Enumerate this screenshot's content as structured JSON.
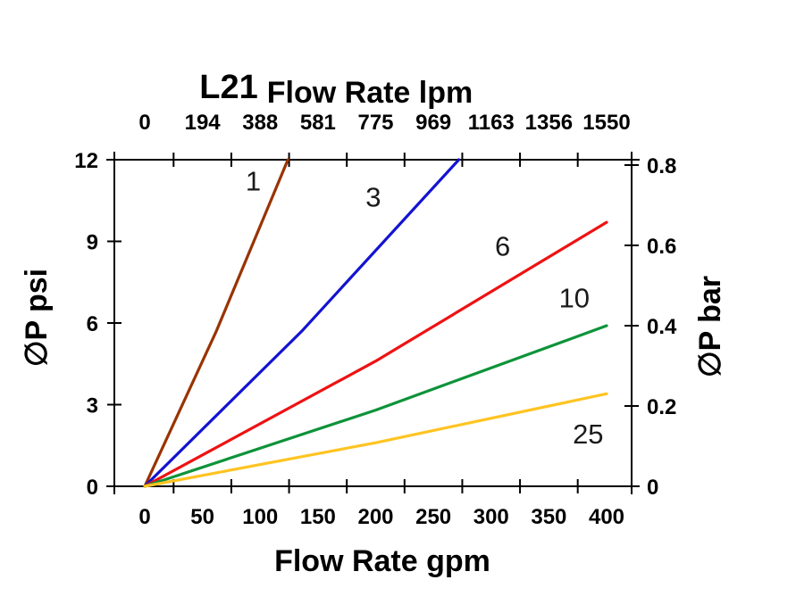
{
  "chart_data": {
    "type": "line",
    "title": "L21",
    "grid": false,
    "legend": "inline-labels",
    "axes": {
      "bottom": {
        "label": "Flow Rate gpm",
        "ticks": [
          0,
          50,
          100,
          150,
          200,
          250,
          300,
          350,
          400
        ],
        "lim": [
          0,
          400
        ]
      },
      "top": {
        "label": "Flow Rate lpm",
        "ticks": [
          0,
          194,
          388,
          581,
          775,
          969,
          1163,
          1356,
          1550
        ],
        "lim": [
          0,
          1550
        ]
      },
      "left": {
        "label": "∅P psi",
        "ticks": [
          0,
          3,
          6,
          9,
          12
        ],
        "lim": [
          0,
          12
        ]
      },
      "right": {
        "label": "∅P bar",
        "ticks": [
          0,
          0.2,
          0.4,
          0.6,
          0.8
        ],
        "lim": [
          0,
          0.8
        ]
      }
    },
    "series": [
      {
        "name": "1",
        "color": "#993300",
        "x": [
          0,
          62,
          124
        ],
        "y": [
          0,
          5.7,
          12
        ],
        "label_pos": [
          94,
          11.2
        ]
      },
      {
        "name": "3",
        "color": "#1313D2",
        "x": [
          0,
          136,
          272
        ],
        "y": [
          0,
          5.7,
          12
        ],
        "label_pos": [
          198,
          10.6
        ]
      },
      {
        "name": "6",
        "color": "#EE1212",
        "x": [
          0,
          200,
          400
        ],
        "y": [
          0,
          4.6,
          9.7
        ],
        "label_pos": [
          310,
          8.8
        ]
      },
      {
        "name": "10",
        "color": "#0D9339",
        "x": [
          0,
          200,
          400
        ],
        "y": [
          0,
          2.8,
          5.9
        ],
        "label_pos": [
          372,
          6.9
        ]
      },
      {
        "name": "25",
        "color": "#FFC422",
        "x": [
          0,
          200,
          400
        ],
        "y": [
          0,
          1.6,
          3.4
        ],
        "label_pos": [
          384,
          1.9
        ]
      }
    ]
  }
}
